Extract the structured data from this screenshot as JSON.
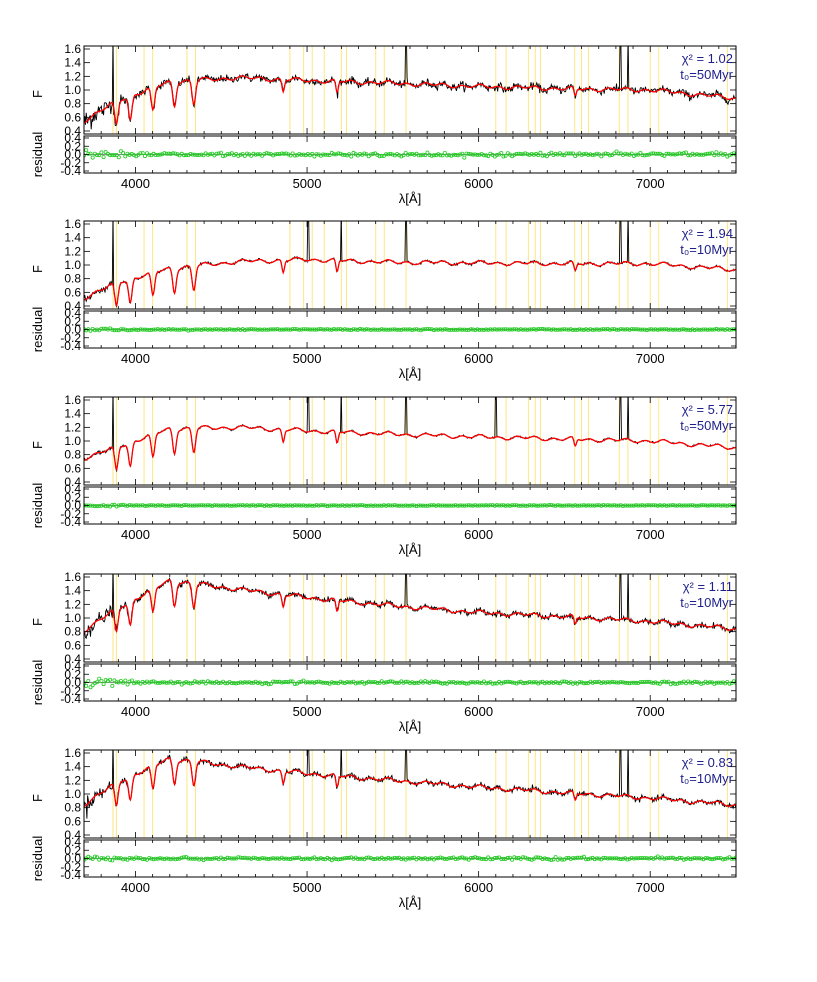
{
  "chart_data": [
    {
      "type": "line",
      "panel": "spectrum-fit",
      "xlabel": "λ[Å]",
      "ylabel": "F",
      "residual_ylabel": "residual",
      "xlim": [
        3700,
        7500
      ],
      "ylim": [
        0.4,
        1.6
      ],
      "residual_ylim": [
        -0.4,
        0.4
      ],
      "x_ticks": [
        4000,
        5000,
        6000,
        7000
      ],
      "y_ticks": [
        0.4,
        0.6,
        0.8,
        1.0,
        1.2,
        1.4,
        1.6
      ],
      "residual_ticks": [
        -0.4,
        -0.2,
        0.0,
        0.2,
        0.4
      ],
      "annotation": {
        "chi2": "χ² = 1.02",
        "age": "t₀=50Myr"
      },
      "spectrum_continuum": {
        "x": [
          3700,
          3900,
          4200,
          4600,
          5000,
          5500,
          6000,
          6500,
          7000,
          7500
        ],
        "y": [
          0.55,
          0.85,
          1.12,
          1.18,
          1.14,
          1.1,
          1.05,
          1.02,
          1.0,
          0.88
        ]
      },
      "absorption_lines": [
        3889,
        3970,
        4102,
        4227,
        4340,
        4861,
        5175,
        6563
      ],
      "emission_lines": [
        3869,
        5577,
        6827,
        6871
      ],
      "masked_regions": [
        3869,
        3889,
        4050,
        4100,
        4300,
        4350,
        4900,
        4980,
        5030,
        5100,
        5200,
        5230,
        5400,
        5450,
        5577,
        6100,
        6160,
        6290,
        6330,
        6360,
        6560,
        6600,
        6640,
        6820,
        6870,
        7000,
        7050,
        7450
      ],
      "series": [
        {
          "name": "",
          "color": "#000000"
        },
        {
          "name": "",
          "color": "#ff0000"
        },
        {
          "name": "",
          "color": "#22cc22"
        }
      ],
      "noise": 0.07
    },
    {
      "type": "line",
      "panel": "spectrum-fit",
      "xlabel": "λ[Å]",
      "ylabel": "F",
      "residual_ylabel": "residual",
      "xlim": [
        3700,
        7500
      ],
      "ylim": [
        0.4,
        1.6
      ],
      "residual_ylim": [
        -0.4,
        0.4
      ],
      "x_ticks": [
        4000,
        5000,
        6000,
        7000
      ],
      "y_ticks": [
        0.4,
        0.6,
        0.8,
        1.0,
        1.2,
        1.4,
        1.6
      ],
      "residual_ticks": [
        -0.4,
        -0.2,
        0.0,
        0.2,
        0.4
      ],
      "annotation": {
        "chi2": "χ² = 1.94",
        "age": "t₀=10Myr"
      },
      "spectrum_continuum": {
        "x": [
          3700,
          3900,
          4200,
          4600,
          5000,
          5500,
          6000,
          6500,
          7000,
          7500
        ],
        "y": [
          0.52,
          0.75,
          0.95,
          1.05,
          1.08,
          1.04,
          1.03,
          1.02,
          1.02,
          0.93
        ]
      },
      "absorption_lines": [
        3889,
        3970,
        4102,
        4227,
        4340,
        4861,
        5175,
        6563
      ],
      "emission_lines": [
        3869,
        5577,
        6827,
        6871,
        5007,
        5200
      ],
      "masked_regions": [
        3869,
        3889,
        4050,
        4100,
        4300,
        4350,
        4900,
        4980,
        5030,
        5100,
        5200,
        5230,
        5400,
        5450,
        5577,
        6100,
        6160,
        6290,
        6330,
        6360,
        6560,
        6600,
        6640,
        6820,
        6870,
        7000,
        7050,
        7450
      ],
      "series": [
        {
          "name": "",
          "color": "#000000"
        },
        {
          "name": "",
          "color": "#ff0000"
        },
        {
          "name": "",
          "color": "#22cc22"
        }
      ],
      "noise": 0.02
    },
    {
      "type": "line",
      "panel": "spectrum-fit",
      "xlabel": "λ[Å]",
      "ylabel": "F",
      "residual_ylabel": "residual",
      "xlim": [
        3700,
        7500
      ],
      "ylim": [
        0.4,
        1.6
      ],
      "residual_ylim": [
        -0.4,
        0.4
      ],
      "x_ticks": [
        4000,
        5000,
        6000,
        7000
      ],
      "y_ticks": [
        0.4,
        0.6,
        0.8,
        1.0,
        1.2,
        1.4,
        1.6
      ],
      "residual_ticks": [
        -0.4,
        -0.2,
        0.0,
        0.2,
        0.4
      ],
      "annotation": {
        "chi2": "χ² = 5.77",
        "age": "t₀=50Myr"
      },
      "spectrum_continuum": {
        "x": [
          3700,
          3900,
          4200,
          4600,
          5000,
          5500,
          6000,
          6500,
          7000,
          7500
        ],
        "y": [
          0.75,
          0.92,
          1.18,
          1.2,
          1.15,
          1.1,
          1.06,
          1.03,
          1.0,
          0.9
        ]
      },
      "absorption_lines": [
        3889,
        3970,
        4102,
        4227,
        4340,
        4861,
        5175,
        6563
      ],
      "emission_lines": [
        3869,
        5577,
        6827,
        6871,
        5007,
        5200,
        6100
      ],
      "masked_regions": [
        3869,
        3889,
        4050,
        4100,
        4300,
        4350,
        4900,
        4980,
        5030,
        5100,
        5200,
        5230,
        5400,
        5450,
        5577,
        6100,
        6160,
        6290,
        6330,
        6360,
        6560,
        6600,
        6640,
        6820,
        6870,
        7000,
        7050,
        7450
      ],
      "series": [
        {
          "name": "",
          "color": "#000000"
        },
        {
          "name": "",
          "color": "#ff0000"
        },
        {
          "name": "",
          "color": "#22cc22"
        }
      ],
      "noise": 0.015
    },
    {
      "type": "line",
      "panel": "spectrum-fit",
      "xlabel": "λ[Å]",
      "ylabel": "F",
      "residual_ylabel": "residual",
      "xlim": [
        3700,
        7500
      ],
      "ylim": [
        0.4,
        1.6
      ],
      "residual_ylim": [
        -0.4,
        0.4
      ],
      "x_ticks": [
        4000,
        5000,
        6000,
        7000
      ],
      "y_ticks": [
        0.4,
        0.6,
        0.8,
        1.0,
        1.2,
        1.4,
        1.6
      ],
      "residual_ticks": [
        -0.4,
        -0.2,
        0.0,
        0.2,
        0.4
      ],
      "annotation": {
        "chi2": "χ² = 1.11",
        "age": "t₀=10Myr"
      },
      "spectrum_continuum": {
        "x": [
          3700,
          3900,
          4200,
          4600,
          5000,
          5500,
          6000,
          6500,
          7000,
          7500
        ],
        "y": [
          0.82,
          1.15,
          1.55,
          1.42,
          1.3,
          1.18,
          1.08,
          1.02,
          0.95,
          0.84
        ]
      },
      "absorption_lines": [
        3889,
        3970,
        4102,
        4227,
        4340,
        4861,
        5175,
        6563
      ],
      "emission_lines": [
        3869,
        5577,
        6827,
        6871
      ],
      "masked_regions": [
        3869,
        3889,
        4050,
        4100,
        4300,
        4350,
        4900,
        4980,
        5030,
        5100,
        5200,
        5230,
        5400,
        5450,
        5577,
        6100,
        6160,
        6290,
        6330,
        6360,
        6560,
        6600,
        6640,
        6820,
        6870,
        7000,
        7050,
        7450
      ],
      "series": [
        {
          "name": "",
          "color": "#000000"
        },
        {
          "name": "",
          "color": "#ff0000"
        },
        {
          "name": "",
          "color": "#22cc22"
        }
      ],
      "noise": 0.05
    },
    {
      "type": "line",
      "panel": "spectrum-fit",
      "xlabel": "λ[Å]",
      "ylabel": "F",
      "residual_ylabel": "residual",
      "xlim": [
        3700,
        7500
      ],
      "ylim": [
        0.4,
        1.6
      ],
      "residual_ylim": [
        -0.4,
        0.4
      ],
      "x_ticks": [
        4000,
        5000,
        6000,
        7000
      ],
      "y_ticks": [
        0.4,
        0.6,
        0.8,
        1.0,
        1.2,
        1.4,
        1.6
      ],
      "residual_ticks": [
        -0.4,
        -0.2,
        0.0,
        0.2,
        0.4
      ],
      "annotation": {
        "chi2": "χ² = 0.83",
        "age": "t₀=10Myr"
      },
      "spectrum_continuum": {
        "x": [
          3700,
          3900,
          4200,
          4600,
          5000,
          5500,
          6000,
          6500,
          7000,
          7500
        ],
        "y": [
          0.85,
          1.18,
          1.52,
          1.4,
          1.3,
          1.2,
          1.1,
          1.02,
          0.94,
          0.84
        ]
      },
      "absorption_lines": [
        3889,
        3970,
        4102,
        4227,
        4340,
        4861,
        5175,
        6563
      ],
      "emission_lines": [
        3869,
        5577,
        6827,
        6871,
        5007,
        5200
      ],
      "masked_regions": [
        3869,
        3889,
        4050,
        4100,
        4300,
        4350,
        4900,
        4980,
        5030,
        5100,
        5200,
        5230,
        5400,
        5450,
        5577,
        6100,
        6160,
        6290,
        6330,
        6360,
        6560,
        6600,
        6640,
        6820,
        6870,
        7000,
        7050,
        7450
      ],
      "series": [
        {
          "name": "",
          "color": "#000000"
        },
        {
          "name": "",
          "color": "#ff0000"
        },
        {
          "name": "",
          "color": "#22cc22"
        }
      ],
      "noise": 0.045
    }
  ],
  "colors": {
    "observed": "#000000",
    "model": "#ff0000",
    "residual": "#22cc22",
    "masked": "#ffe680",
    "annotation": "#1c1f8c"
  }
}
